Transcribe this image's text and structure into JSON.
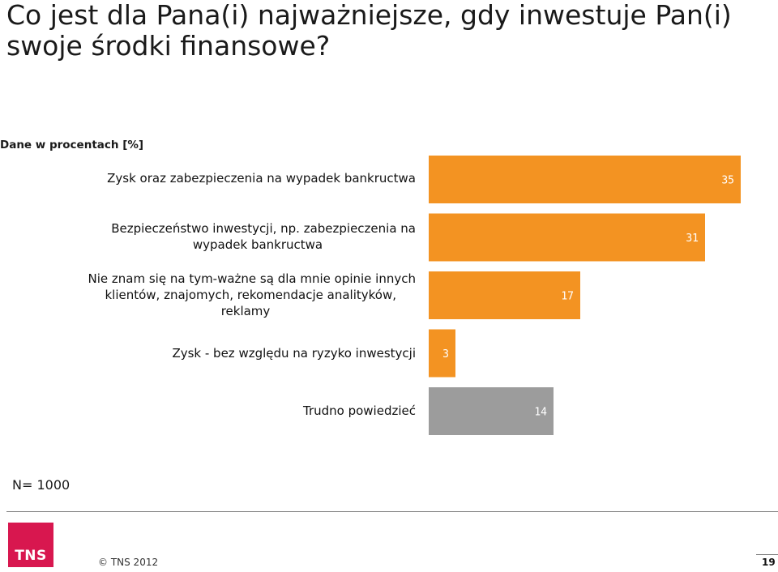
{
  "slide": {
    "title": "Co jest dla Pana(i) najważniejsze, gdy inwestuje Pan(i) swoje środki finansowe?",
    "note": "Dane w procentach [%]",
    "sample_size": "N= 1000",
    "copyright": "© TNS 2012",
    "page_number": "19",
    "logo_text": "TNS"
  },
  "colors": {
    "orange": "#f39322",
    "gray": "#9c9c9c",
    "logo": "#d8174f"
  },
  "chart_data": {
    "type": "bar",
    "orientation": "horizontal",
    "categories": [
      [
        "Zysk oraz zabezpieczenia na wypadek bankructwa"
      ],
      [
        "Bezpieczeństwo inwestycji, np. zabezpieczenia na",
        "wypadek bankructwa"
      ],
      [
        "Nie znam się na tym-ważne są dla mnie opinie innych",
        "klientów, znajomych, rekomendacje analityków,",
        "reklamy"
      ],
      [
        "Zysk - bez względu na ryzyko inwestycji"
      ],
      [
        "Trudno powiedzieć"
      ]
    ],
    "values": [
      35,
      31,
      17,
      3,
      14
    ],
    "value_labels": [
      "35",
      "31",
      "17",
      "3",
      "14"
    ],
    "bar_colors": [
      "#f39322",
      "#f39322",
      "#f39322",
      "#f39322",
      "#9c9c9c"
    ],
    "xlim": [
      0,
      35
    ],
    "grid": false
  }
}
